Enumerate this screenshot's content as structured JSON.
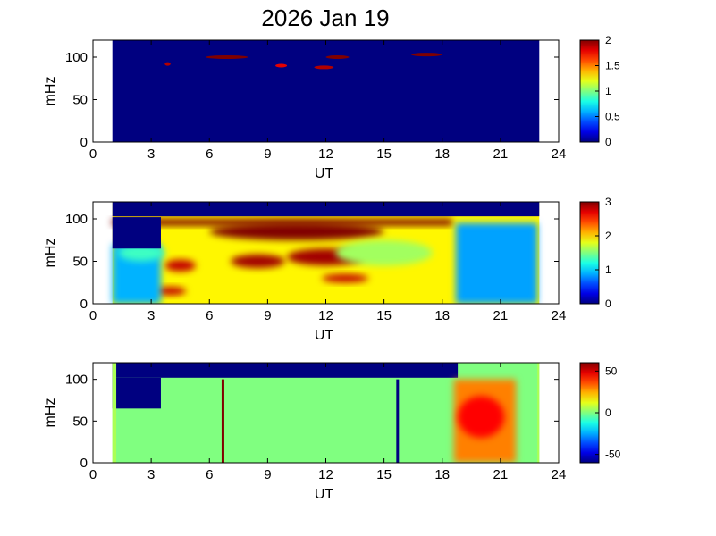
{
  "title": "2026 Jan 19",
  "chart_data": [
    {
      "type": "heatmap",
      "xlabel": "UT",
      "ylabel": "mHz",
      "xlim": [
        0,
        24
      ],
      "ylim": [
        0,
        120
      ],
      "xticks": [
        "0",
        "3",
        "6",
        "9",
        "12",
        "15",
        "18",
        "21",
        "24"
      ],
      "yticks": [
        "0",
        "50",
        "100"
      ],
      "data_x_range": [
        1,
        23
      ],
      "colorbar": {
        "min": 0,
        "max": 2,
        "ticks": [
          "0",
          "0.5",
          "1",
          "1.5",
          "2"
        ],
        "colormap": "jet"
      },
      "background_level": 0,
      "features": [
        {
          "kind": "streak",
          "x": [
            5.8,
            8.0
          ],
          "y": 100,
          "level": 2.0
        },
        {
          "kind": "streak",
          "x": [
            12.0,
            13.2
          ],
          "y": 100,
          "level": 2.0
        },
        {
          "kind": "streak",
          "x": [
            11.4,
            12.4
          ],
          "y": 88,
          "level": 1.9
        },
        {
          "kind": "streak",
          "x": [
            16.4,
            18.0
          ],
          "y": 103,
          "level": 2.0
        },
        {
          "kind": "streak",
          "x": [
            3.7,
            4.0
          ],
          "y": 92,
          "level": 1.9
        },
        {
          "kind": "streak",
          "x": [
            9.4,
            10.0
          ],
          "y": 90,
          "level": 1.8
        }
      ]
    },
    {
      "type": "heatmap",
      "xlabel": "UT",
      "ylabel": "mHz",
      "xlim": [
        0,
        24
      ],
      "ylim": [
        0,
        120
      ],
      "xticks": [
        "0",
        "3",
        "6",
        "9",
        "12",
        "15",
        "18",
        "21",
        "24"
      ],
      "yticks": [
        "0",
        "50",
        "100"
      ],
      "data_x_range": [
        1,
        23
      ],
      "colorbar": {
        "min": 0,
        "max": 3,
        "ticks": [
          "0",
          "1",
          "2",
          "3"
        ],
        "colormap": "jet"
      },
      "background_level": 1.9,
      "features": [
        {
          "kind": "band",
          "x": [
            1.0,
            18.5
          ],
          "y": [
            92,
            100
          ],
          "level": 3.0
        },
        {
          "kind": "blob",
          "x": 10.5,
          "y": 85,
          "rx": 4.5,
          "ry": 10,
          "level": 3.0
        },
        {
          "kind": "blob",
          "x": 8.5,
          "y": 50,
          "rx": 1.4,
          "ry": 8,
          "level": 2.9
        },
        {
          "kind": "blob",
          "x": 12.0,
          "y": 55,
          "rx": 2.0,
          "ry": 10,
          "level": 2.9
        },
        {
          "kind": "blob",
          "x": 4.5,
          "y": 45,
          "rx": 0.8,
          "ry": 7,
          "level": 2.8
        },
        {
          "kind": "blob",
          "x": 13.0,
          "y": 30,
          "rx": 1.2,
          "ry": 5,
          "level": 2.8
        },
        {
          "kind": "blob",
          "x": 4.0,
          "y": 15,
          "rx": 0.8,
          "ry": 5,
          "level": 2.8
        },
        {
          "kind": "region",
          "x": [
            1.0,
            3.5
          ],
          "y": [
            0,
            70
          ],
          "level": 0.9
        },
        {
          "kind": "region",
          "x": [
            18.7,
            22.9
          ],
          "y": [
            0,
            95
          ],
          "level": 0.85
        },
        {
          "kind": "blob",
          "x": 2.5,
          "y": 60,
          "rx": 1.2,
          "ry": 10,
          "level": 1.3
        },
        {
          "kind": "blob",
          "x": 15.0,
          "y": 60,
          "rx": 2.5,
          "ry": 15,
          "level": 1.6
        },
        {
          "kind": "gap",
          "x": [
            1.0,
            23.0
          ],
          "y": [
            103,
            120
          ],
          "level": 0
        },
        {
          "kind": "gap",
          "x": [
            1.0,
            3.5
          ],
          "y": [
            65,
            102
          ],
          "level": 0
        }
      ]
    },
    {
      "type": "heatmap",
      "xlabel": "UT",
      "ylabel": "mHz",
      "xlim": [
        0,
        24
      ],
      "ylim": [
        0,
        120
      ],
      "xticks": [
        "0",
        "3",
        "6",
        "9",
        "12",
        "15",
        "18",
        "21",
        "24"
      ],
      "yticks": [
        "0",
        "50",
        "100"
      ],
      "data_x_range": [
        1,
        23
      ],
      "colorbar": {
        "min": -60,
        "max": 60,
        "ticks": [
          "50",
          "0",
          "-50"
        ],
        "tick_values": [
          50,
          0,
          -50
        ],
        "colormap": "jet"
      },
      "background_level": 0,
      "features": [
        {
          "kind": "gap",
          "x": [
            1.0,
            18.8
          ],
          "y": [
            102,
            120
          ],
          "level": -60
        },
        {
          "kind": "gap",
          "x": [
            1.0,
            3.5
          ],
          "y": [
            65,
            102
          ],
          "level": -60
        },
        {
          "kind": "region",
          "x": [
            18.6,
            21.8
          ],
          "y": [
            0,
            100
          ],
          "level": 30
        },
        {
          "kind": "blob",
          "x": 20.0,
          "y": 55,
          "rx": 1.2,
          "ry": 25,
          "level": 45
        },
        {
          "kind": "vline",
          "x": 6.7,
          "y": [
            0,
            100
          ],
          "level": 60
        },
        {
          "kind": "vline",
          "x": 15.7,
          "y": [
            0,
            100
          ],
          "level": -60
        },
        {
          "kind": "edge",
          "x": [
            1.0,
            1.2
          ],
          "y": [
            0,
            120
          ],
          "level": 5
        },
        {
          "kind": "edge",
          "x": [
            22.9,
            23.0
          ],
          "y": [
            0,
            120
          ],
          "level": 5
        }
      ]
    }
  ]
}
